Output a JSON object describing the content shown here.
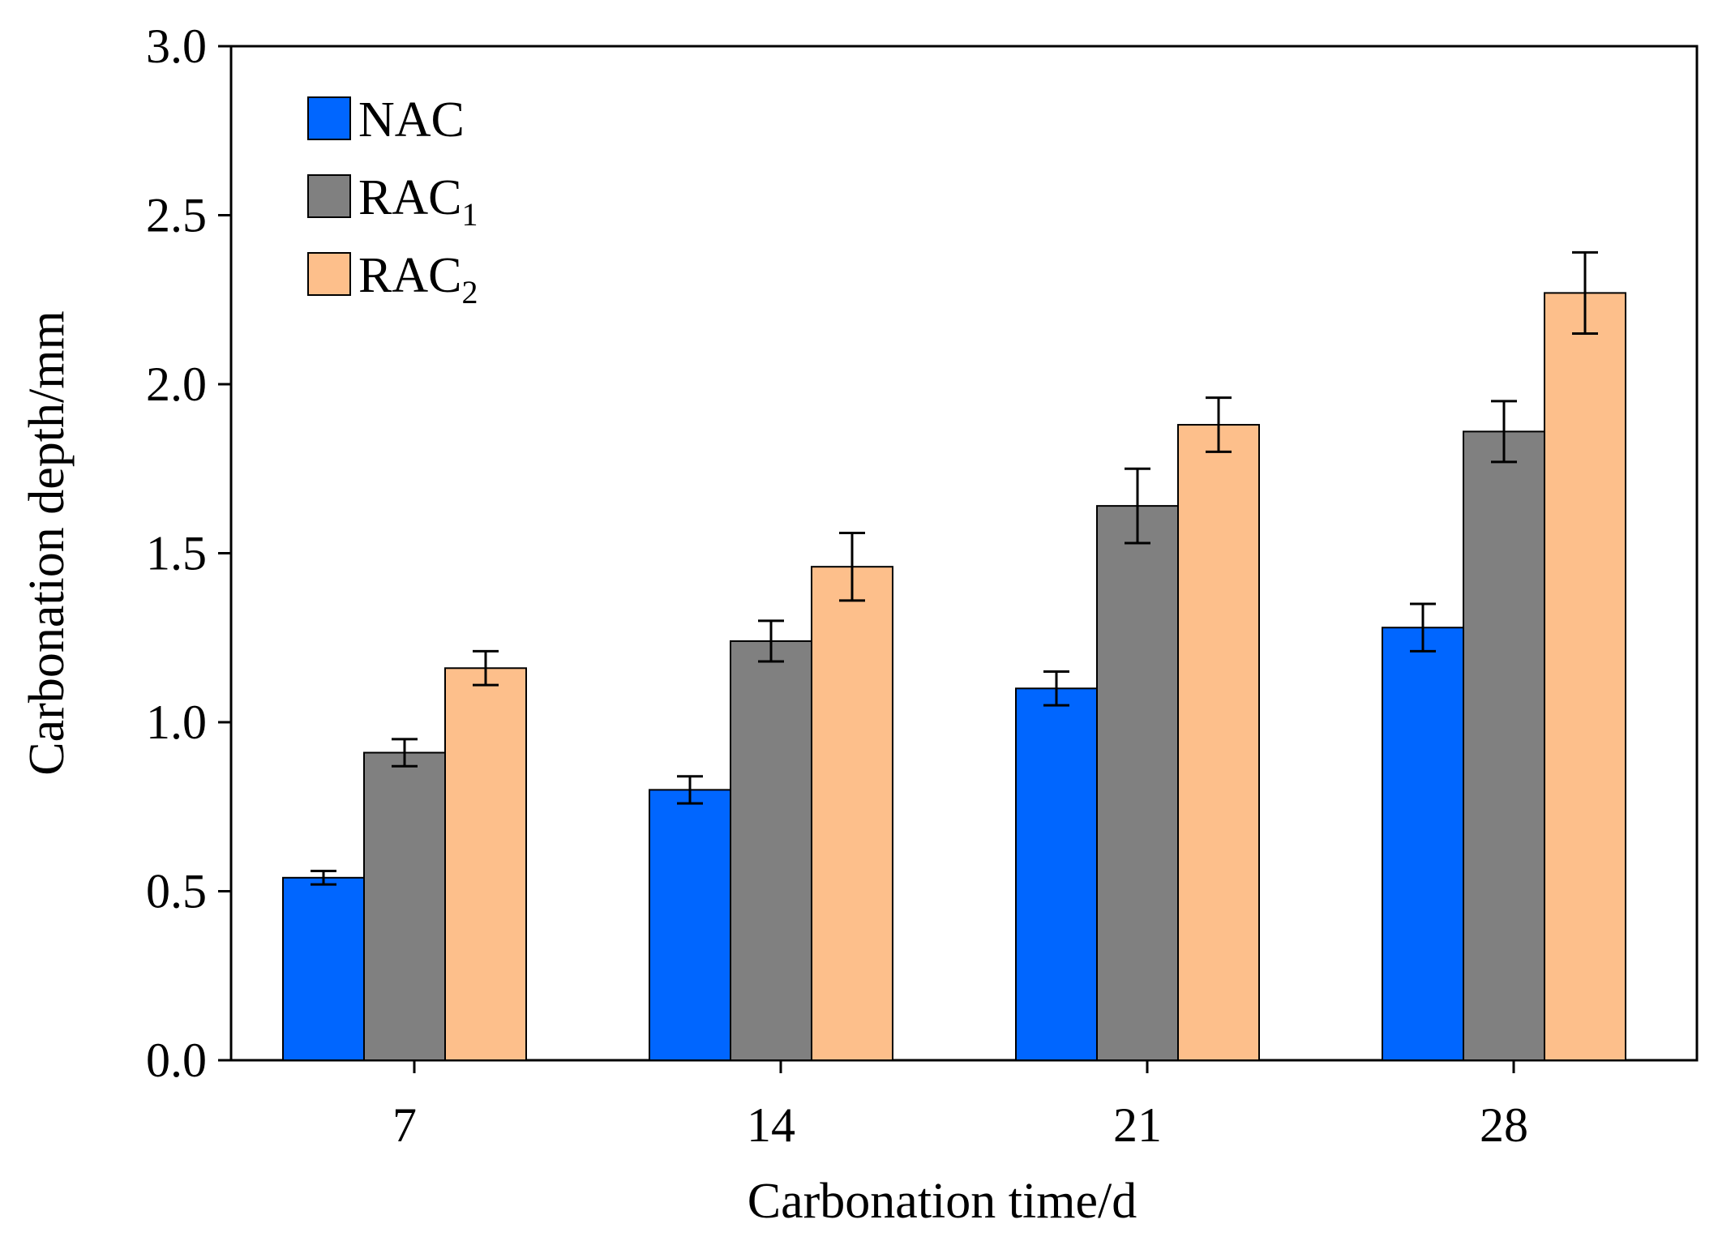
{
  "chart_data": {
    "type": "bar",
    "xlabel": "Carbonation time/d",
    "ylabel": "Carbonation depth/mm",
    "categories": [
      "7",
      "14",
      "21",
      "28"
    ],
    "ylim": [
      0,
      3.0
    ],
    "yticks": [
      "0.0",
      "0.5",
      "1.0",
      "1.5",
      "2.0",
      "2.5",
      "3.0"
    ],
    "grid": false,
    "legend_position": "top-left",
    "series": [
      {
        "name": "NAC",
        "label_main": "NAC",
        "label_sub": "",
        "color": "#0066ff",
        "values": [
          0.54,
          0.8,
          1.1,
          1.28
        ],
        "errors": [
          0.02,
          0.04,
          0.05,
          0.07
        ]
      },
      {
        "name": "RAC1",
        "label_main": "RAC",
        "label_sub": "1",
        "color": "#808080",
        "values": [
          0.91,
          1.24,
          1.64,
          1.86
        ],
        "errors": [
          0.04,
          0.06,
          0.11,
          0.09
        ]
      },
      {
        "name": "RAC2",
        "label_main": "RAC",
        "label_sub": "2",
        "color": "#fdbf8b",
        "values": [
          1.16,
          1.46,
          1.88,
          2.27
        ],
        "errors": [
          0.05,
          0.1,
          0.08,
          0.12
        ]
      }
    ]
  }
}
